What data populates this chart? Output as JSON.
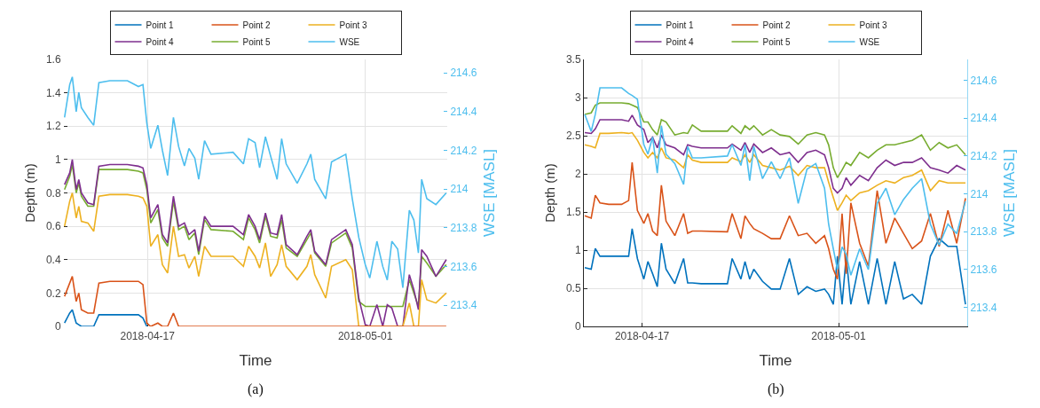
{
  "chart_data": [
    {
      "type": "line",
      "xlabel": "Time",
      "ylabel": "Depth (m)",
      "y2label": "WSE [MASL]",
      "annotations": [
        "(a)"
      ],
      "x": [
        "2018-04-11T16:00",
        "2018-04-12T00:00",
        "2018-04-12T04:00",
        "2018-04-12T10:00",
        "2018-04-12T14:00",
        "2018-04-12T18:00",
        "2018-04-13T04:00",
        "2018-04-13T13:00",
        "2018-04-13T21:00",
        "2018-04-14T14:00",
        "2018-04-15T17:00",
        "2018-04-16T10:00",
        "2018-04-16T17:00",
        "2018-04-16T23:00",
        "2018-04-17T05:00",
        "2018-04-17T16:00",
        "2018-04-17T23:00",
        "2018-04-18T07:00",
        "2018-04-18T16:00",
        "2018-04-19T00:00",
        "2018-04-19T09:00",
        "2018-04-19T16:00",
        "2018-04-20T01:00",
        "2018-04-20T07:00",
        "2018-04-20T16:00",
        "2018-04-21T02:00",
        "2018-04-22T12:00",
        "2018-04-23T04:00",
        "2018-04-23T12:00",
        "2018-04-23T22:00",
        "2018-04-24T05:00",
        "2018-04-24T14:00",
        "2018-04-24T22:00",
        "2018-04-25T08:00",
        "2018-04-25T15:00",
        "2018-04-25T22:00",
        "2018-04-26T15:00",
        "2018-04-27T06:00",
        "2018-04-27T12:00",
        "2018-04-27T18:00",
        "2018-04-28T11:00",
        "2018-04-28T20:00",
        "2018-04-29T18:00",
        "2018-04-30T04:00",
        "2018-04-30T14:00",
        "2018-05-01T00:00",
        "2018-05-01T07:00",
        "2018-05-01T18:00",
        "2018-05-02T03:00",
        "2018-05-02T10:00",
        "2018-05-02T17:00",
        "2018-05-03T02:00",
        "2018-05-03T10:00",
        "2018-05-03T20:00",
        "2018-05-04T03:00",
        "2018-05-04T10:00",
        "2018-05-04T15:00",
        "2018-05-04T23:00",
        "2018-05-05T13:00",
        "2018-05-06T05:00"
      ],
      "series": [
        {
          "name": "Point 1",
          "color": "#0072bd",
          "values": [
            0.02,
            0.08,
            0.1,
            0.02,
            0.01,
            0,
            0,
            0,
            0.07,
            0.07,
            0.07,
            0.07,
            0.05,
            0,
            null,
            null,
            null,
            null,
            null,
            null,
            null,
            null,
            null,
            null,
            null,
            null,
            null,
            null,
            null,
            null,
            null,
            null,
            null,
            null,
            null,
            null,
            null,
            null,
            null,
            null,
            null,
            null,
            null,
            null,
            null,
            null,
            null,
            null,
            null,
            null,
            null,
            null,
            null,
            null,
            null,
            null,
            null,
            null,
            null,
            null
          ]
        },
        {
          "name": "Point 2",
          "color": "#d95319",
          "values": [
            0.18,
            0.26,
            0.3,
            0.15,
            0.2,
            0.1,
            0.08,
            0.08,
            0.26,
            0.27,
            0.27,
            0.27,
            0.25,
            0.02,
            0,
            0.02,
            0,
            0,
            0.08,
            0,
            0,
            0,
            0,
            0,
            0,
            0,
            0,
            0,
            0,
            0,
            0,
            0,
            0,
            0,
            0,
            0,
            0,
            0,
            0,
            0,
            0,
            0,
            0,
            0,
            0,
            0,
            0,
            0,
            0,
            0,
            0,
            0,
            0,
            0,
            0,
            0,
            0,
            0,
            0,
            0
          ]
        },
        {
          "name": "Point 3",
          "color": "#edb120",
          "values": [
            0.6,
            0.75,
            0.8,
            0.65,
            0.72,
            0.63,
            0.62,
            0.57,
            0.78,
            0.79,
            0.79,
            0.78,
            0.77,
            0.72,
            0.48,
            0.55,
            0.37,
            0.32,
            0.6,
            0.42,
            0.43,
            0.35,
            0.42,
            0.3,
            0.48,
            0.42,
            0.42,
            0.36,
            0.48,
            0.42,
            0.35,
            0.5,
            0.3,
            0.37,
            0.49,
            0.36,
            0.28,
            0.36,
            0.43,
            0.31,
            0.17,
            0.36,
            0.4,
            0.34,
            0,
            0,
            0,
            0,
            0,
            0,
            0,
            0,
            0,
            0.14,
            0,
            0,
            0.28,
            0.16,
            0.14,
            0.2
          ]
        },
        {
          "name": "Point 4",
          "color": "#7e2f8e",
          "values": [
            0.85,
            0.92,
            1.0,
            0.82,
            0.88,
            0.8,
            0.74,
            0.73,
            0.96,
            0.97,
            0.97,
            0.96,
            0.95,
            0.85,
            0.65,
            0.73,
            0.55,
            0.5,
            0.78,
            0.6,
            0.62,
            0.55,
            0.58,
            0.45,
            0.66,
            0.6,
            0.6,
            0.55,
            0.67,
            0.6,
            0.52,
            0.68,
            0.56,
            0.55,
            0.67,
            0.49,
            0.43,
            0.54,
            0.58,
            0.45,
            0.37,
            0.52,
            0.58,
            0.49,
            0.17,
            0.01,
            0,
            0.13,
            0,
            0.13,
            0.11,
            0,
            0,
            0.31,
            0.22,
            0.1,
            0.46,
            0.42,
            0.3,
            0.4
          ]
        },
        {
          "name": "Point 5",
          "color": "#77ac30",
          "values": [
            0.82,
            0.9,
            0.97,
            0.8,
            0.86,
            0.78,
            0.72,
            0.72,
            0.94,
            0.94,
            0.94,
            0.93,
            0.92,
            0.82,
            0.62,
            0.7,
            0.53,
            0.48,
            0.75,
            0.58,
            0.6,
            0.52,
            0.56,
            0.43,
            0.64,
            0.58,
            0.57,
            0.52,
            0.65,
            0.58,
            0.5,
            0.66,
            0.54,
            0.53,
            0.64,
            0.47,
            0.42,
            0.52,
            0.56,
            0.44,
            0.36,
            0.5,
            0.56,
            0.47,
            0.15,
            0.12,
            0.12,
            0.12,
            0.12,
            0.12,
            0.12,
            0.12,
            0.12,
            0.28,
            0.2,
            0.12,
            0.42,
            0.38,
            0.3,
            0.37
          ]
        },
        {
          "name": "WSE",
          "color": "#4dbeee",
          "axis": "y2",
          "values": [
            214.37,
            214.54,
            214.58,
            214.4,
            214.5,
            214.42,
            214.37,
            214.33,
            214.55,
            214.56,
            214.56,
            214.53,
            214.54,
            214.34,
            214.21,
            214.33,
            214.2,
            214.07,
            214.37,
            214.22,
            214.12,
            214.21,
            214.16,
            214.05,
            214.25,
            214.18,
            214.19,
            214.13,
            214.26,
            214.24,
            214.11,
            214.27,
            214.17,
            214.05,
            214.26,
            214.13,
            214.03,
            214.13,
            214.18,
            214.05,
            213.95,
            214.14,
            214.18,
            213.95,
            213.75,
            213.61,
            213.54,
            213.73,
            213.6,
            213.53,
            213.73,
            213.69,
            213.49,
            213.89,
            213.84,
            213.67,
            214.05,
            213.95,
            213.92,
            213.98
          ]
        }
      ],
      "xlim": [
        "2018-04-11T15:00",
        "2018-05-06T06:30"
      ],
      "xticks": [
        "2018-04-17",
        "2018-05-01"
      ],
      "ylim": [
        0,
        1.6
      ],
      "yticks": [
        0,
        0.2,
        0.4,
        0.6,
        0.8,
        1,
        1.2,
        1.4,
        1.6
      ],
      "y2lim": [
        213.29,
        214.67
      ],
      "y2ticks": [
        213.4,
        213.6,
        213.8,
        214,
        214.2,
        214.4,
        214.6
      ],
      "grid": true,
      "legend": "top",
      "line_style": "solid",
      "marker": "none"
    },
    {
      "type": "line",
      "xlabel": "Time",
      "ylabel": "Depth (m)",
      "y2label": "WSE [MASL]",
      "annotations": [
        "(b)"
      ],
      "x": [
        "2018-04-12T22:00",
        "2018-04-13T09:00",
        "2018-04-13T16:00",
        "2018-04-14T00:00",
        "2018-04-14T15:00",
        "2018-04-15T13:00",
        "2018-04-16T01:00",
        "2018-04-16T07:00",
        "2018-04-16T16:00",
        "2018-04-17T03:00",
        "2018-04-17T10:00",
        "2018-04-17T18:00",
        "2018-04-18T02:00",
        "2018-04-18T09:00",
        "2018-04-18T17:00",
        "2018-04-19T08:00",
        "2018-04-19T23:00",
        "2018-04-20T06:00",
        "2018-04-20T14:00",
        "2018-04-21T05:00",
        "2018-04-23T02:00",
        "2018-04-23T10:00",
        "2018-04-24T01:00",
        "2018-04-24T08:00",
        "2018-04-24T16:00",
        "2018-04-24T23:00",
        "2018-04-25T14:00",
        "2018-04-26T05:00",
        "2018-04-26T20:00",
        "2018-04-27T12:00",
        "2018-04-28T03:00",
        "2018-04-28T18:00",
        "2018-04-29T09:00",
        "2018-04-30T00:00",
        "2018-04-30T07:00",
        "2018-04-30T15:00",
        "2018-04-30T22:00",
        "2018-05-01T06:00",
        "2018-05-01T13:00",
        "2018-05-01T21:00",
        "2018-05-02T12:00",
        "2018-05-03T03:00",
        "2018-05-03T18:00",
        "2018-05-04T09:00",
        "2018-05-05T00:00",
        "2018-05-05T15:00",
        "2018-05-06T06:00",
        "2018-05-06T22:00",
        "2018-05-07T13:00",
        "2018-05-08T04:00",
        "2018-05-08T19:00",
        "2018-05-09T10:00",
        "2018-05-10T01:00"
      ],
      "series": [
        {
          "name": "Point 1",
          "color": "#0072bd",
          "values": [
            0.77,
            0.75,
            1.02,
            0.92,
            0.92,
            0.92,
            0.92,
            1.28,
            0.89,
            0.62,
            0.85,
            0.69,
            0.52,
            1.09,
            0.75,
            0.56,
            0.89,
            0.57,
            0.57,
            0.56,
            0.56,
            0.89,
            0.62,
            0.85,
            0.62,
            0.75,
            0.59,
            0.49,
            0.49,
            0.89,
            0.42,
            0.52,
            0.46,
            0.49,
            0.42,
            0.29,
            0.92,
            0.29,
            0.92,
            0.29,
            0.85,
            0.29,
            0.89,
            0.29,
            0.85,
            0.36,
            0.42,
            0.29,
            0.92,
            1.15,
            1.05,
            1.05,
            0.29
          ]
        },
        {
          "name": "Point 2",
          "color": "#d95319",
          "values": [
            1.45,
            1.42,
            1.72,
            1.62,
            1.6,
            1.6,
            1.65,
            2.15,
            1.52,
            1.35,
            1.48,
            1.25,
            1.19,
            1.85,
            1.38,
            1.19,
            1.48,
            1.22,
            1.25,
            1.25,
            1.24,
            1.48,
            1.15,
            1.45,
            1.35,
            1.28,
            1.22,
            1.15,
            1.15,
            1.45,
            1.19,
            1.22,
            1.09,
            1.19,
            1.02,
            0.75,
            0.62,
            1.48,
            0.69,
            1.62,
            1.09,
            0.79,
            1.78,
            1.09,
            1.42,
            1.22,
            1.02,
            1.12,
            1.48,
            1.05,
            1.52,
            1.09,
            1.68
          ]
        },
        {
          "name": "Point 3",
          "color": "#edb120",
          "values": [
            2.38,
            2.36,
            2.34,
            2.53,
            2.53,
            2.54,
            2.53,
            2.54,
            2.44,
            2.28,
            2.21,
            2.28,
            2.21,
            2.34,
            2.21,
            2.18,
            2.08,
            2.25,
            2.18,
            2.15,
            2.15,
            2.21,
            2.16,
            2.25,
            2.15,
            2.25,
            2.11,
            2.08,
            2.05,
            2.1,
            1.98,
            2.11,
            2.08,
            2.08,
            1.89,
            1.69,
            1.52,
            1.62,
            1.72,
            1.65,
            1.75,
            1.78,
            1.85,
            1.91,
            1.88,
            1.95,
            1.98,
            2.05,
            1.78,
            1.91,
            1.88,
            1.88,
            1.88
          ]
        },
        {
          "name": "Point 4",
          "color": "#7e2f8e",
          "values": [
            2.54,
            2.53,
            2.59,
            2.71,
            2.71,
            2.71,
            2.69,
            2.77,
            2.64,
            2.58,
            2.41,
            2.48,
            2.34,
            2.51,
            2.38,
            2.34,
            2.25,
            2.38,
            2.36,
            2.34,
            2.34,
            2.39,
            2.31,
            2.41,
            2.28,
            2.39,
            2.28,
            2.34,
            2.25,
            2.28,
            2.15,
            2.28,
            2.31,
            2.25,
            2.08,
            1.81,
            1.75,
            1.81,
            1.95,
            1.85,
            1.98,
            1.91,
            2.08,
            2.18,
            2.11,
            2.15,
            2.15,
            2.21,
            2.08,
            2.05,
            2.01,
            2.11,
            2.05
          ]
        },
        {
          "name": "Point 5",
          "color": "#77ac30",
          "values": [
            2.78,
            2.8,
            2.9,
            2.93,
            2.93,
            2.93,
            2.92,
            2.9,
            2.87,
            2.68,
            2.68,
            2.58,
            2.51,
            2.71,
            2.68,
            2.51,
            2.54,
            2.53,
            2.64,
            2.56,
            2.56,
            2.63,
            2.53,
            2.63,
            2.58,
            2.63,
            2.51,
            2.58,
            2.51,
            2.49,
            2.39,
            2.51,
            2.54,
            2.51,
            2.38,
            2.08,
            1.95,
            2.05,
            2.15,
            2.11,
            2.28,
            2.21,
            2.31,
            2.38,
            2.38,
            2.41,
            2.44,
            2.51,
            2.31,
            2.41,
            2.34,
            2.38,
            2.25
          ]
        },
        {
          "name": "WSE",
          "color": "#4dbeee",
          "axis": "y2",
          "values": [
            214.42,
            214.33,
            214.42,
            214.56,
            214.56,
            214.56,
            214.53,
            214.52,
            214.5,
            214.26,
            214.21,
            214.3,
            214.11,
            214.36,
            214.21,
            214.16,
            214.05,
            214.25,
            214.19,
            214.19,
            214.2,
            214.26,
            214.15,
            214.26,
            214.07,
            214.25,
            214.08,
            214.17,
            214.08,
            214.19,
            213.95,
            214.13,
            214.16,
            214.03,
            213.84,
            213.71,
            213.6,
            213.72,
            213.68,
            213.57,
            213.71,
            213.6,
            213.95,
            214.03,
            213.89,
            213.97,
            214.03,
            214.08,
            213.84,
            213.73,
            213.84,
            213.79,
            213.96
          ]
        }
      ],
      "xlim": [
        "2018-04-12T20:30",
        "2018-05-10T04:00"
      ],
      "xticks": [
        "2018-04-17",
        "2018-05-01"
      ],
      "ylim": [
        0,
        3.5
      ],
      "yticks": [
        0,
        0.5,
        1,
        1.5,
        2,
        2.5,
        3,
        3.5
      ],
      "y2lim": [
        213.3,
        214.71
      ],
      "y2ticks": [
        213.4,
        213.6,
        213.8,
        214,
        214.2,
        214.4,
        214.6
      ],
      "grid": true,
      "legend": "top",
      "line_style": "solid",
      "marker": "none"
    }
  ]
}
